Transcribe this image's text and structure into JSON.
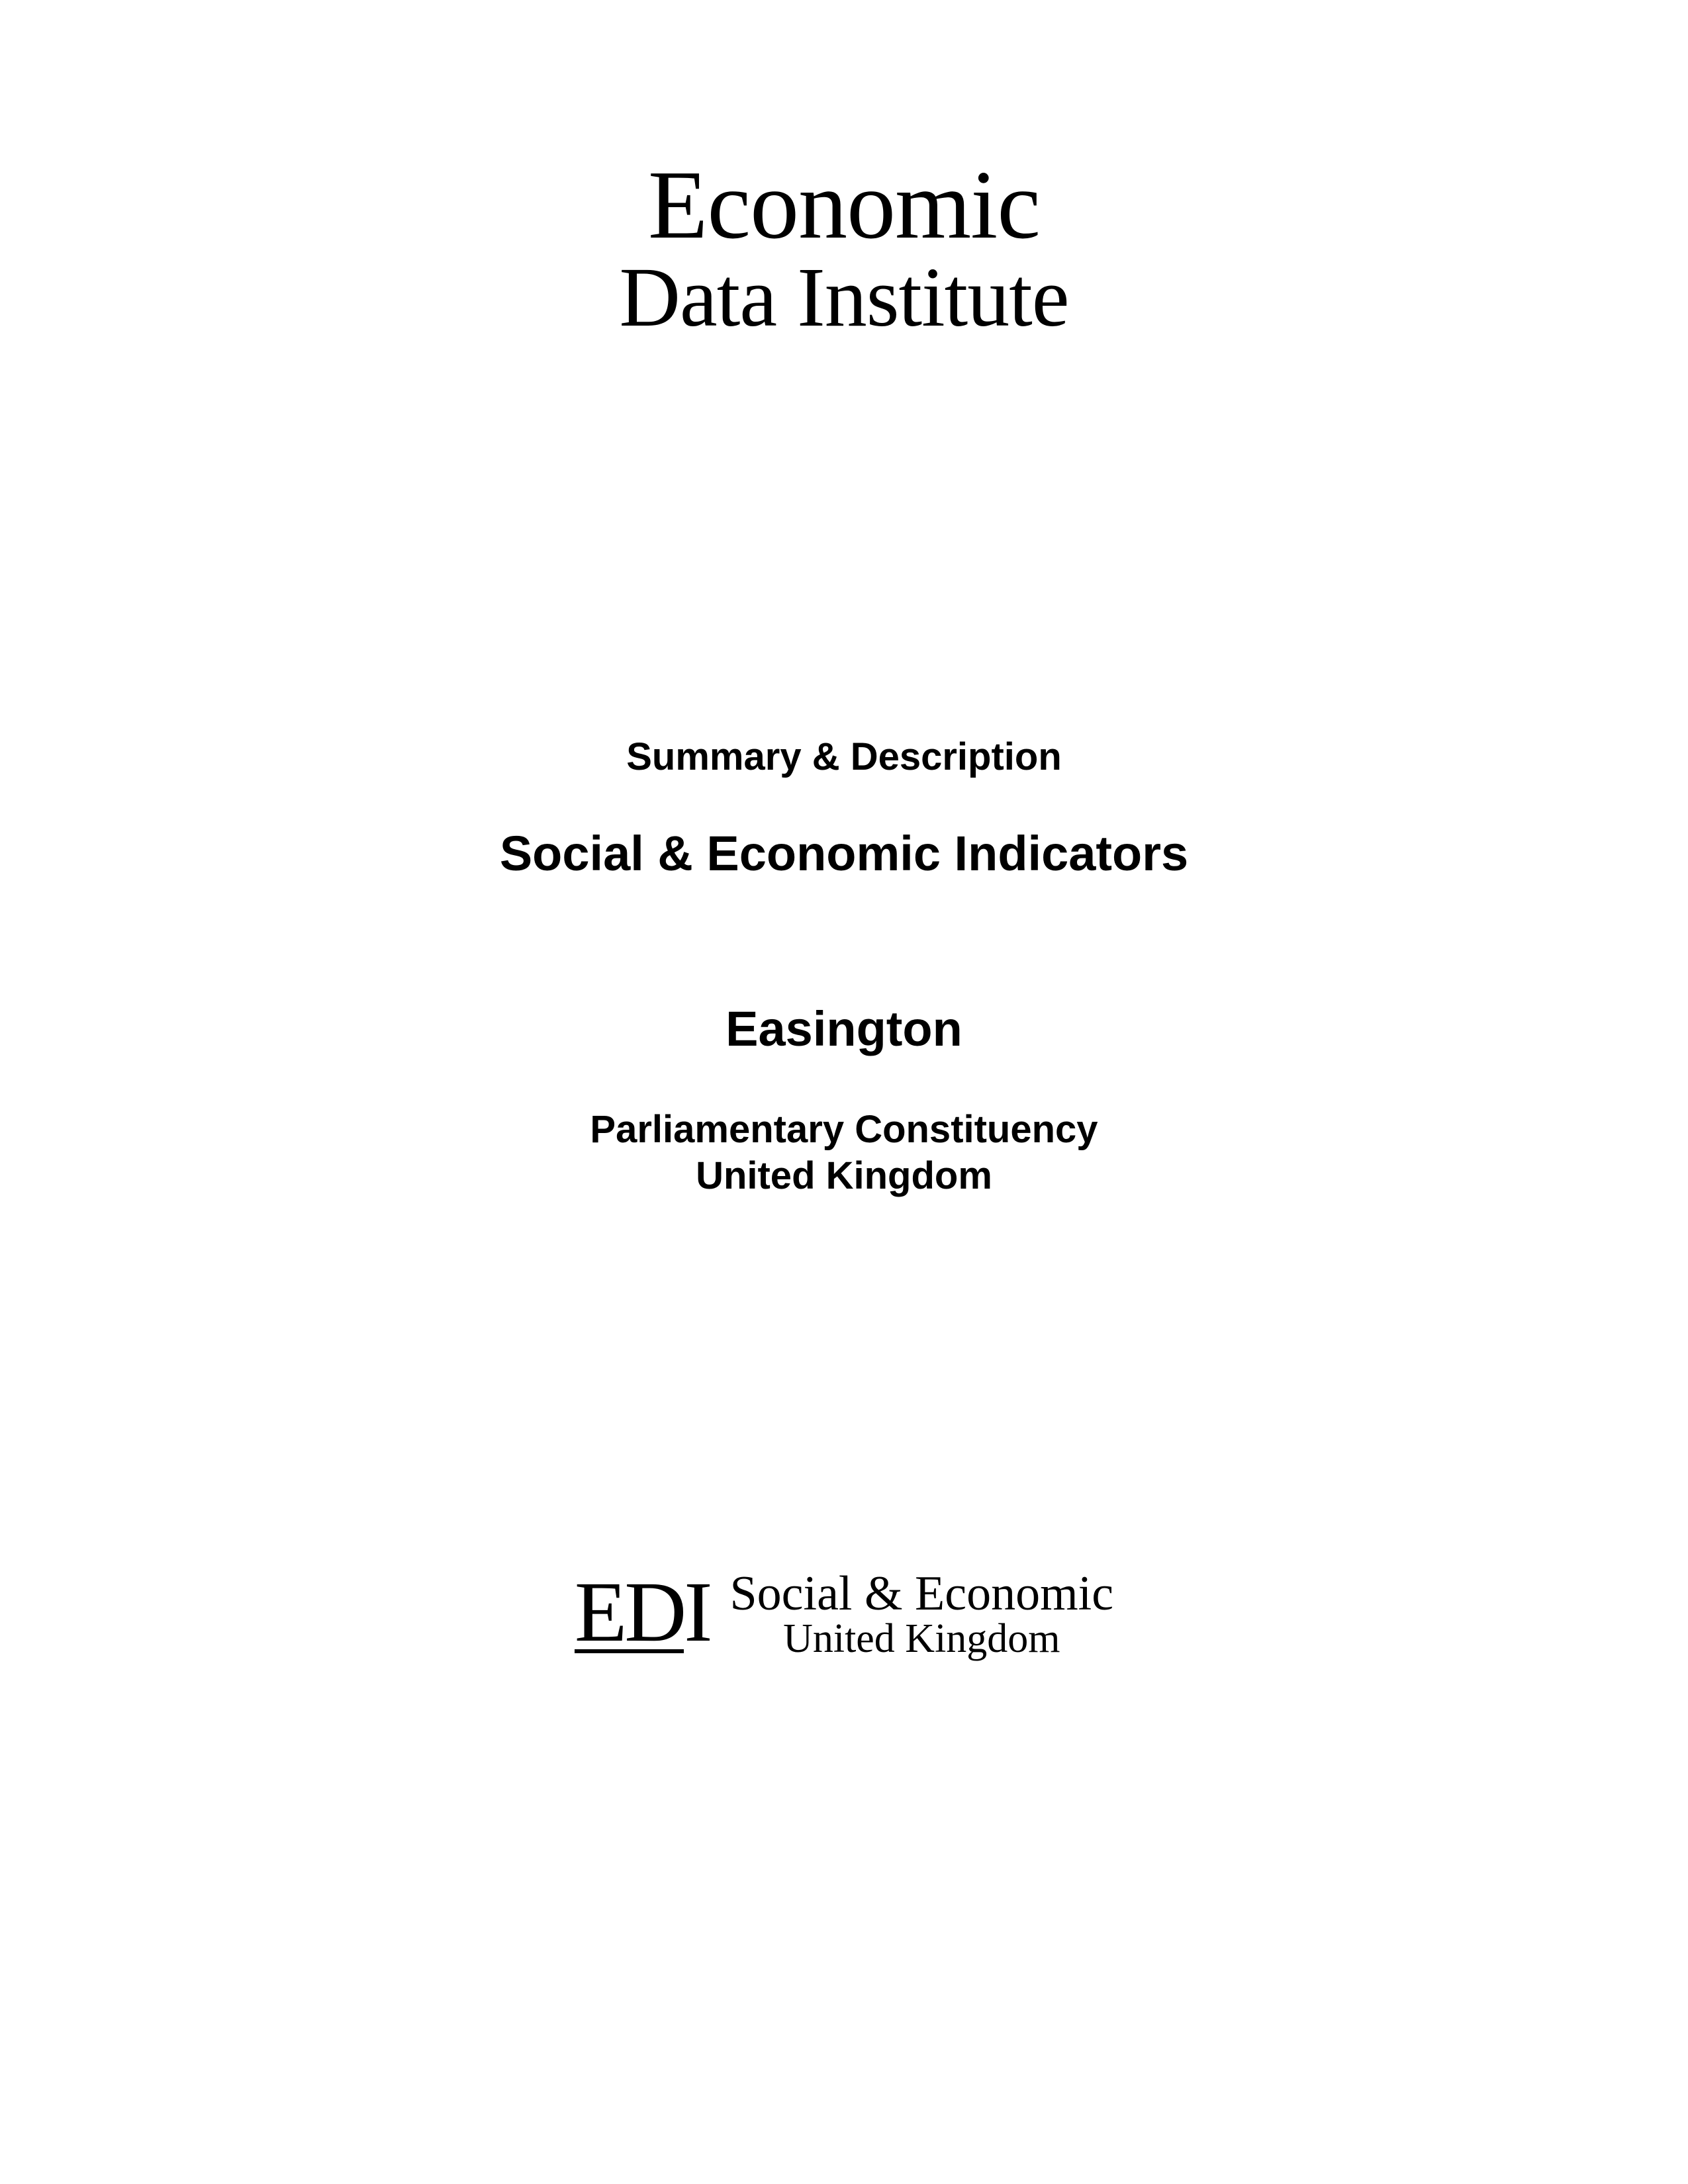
{
  "main_logo": {
    "line1": "Economic",
    "line2": "Data Institute"
  },
  "summary_description": "Summary & Description",
  "indicators_title": "Social & Economic Indicators",
  "location_name": "Easington",
  "constituency": {
    "line1": "Parliamentary Constituency",
    "line2": "United Kingdom"
  },
  "footer": {
    "mark_e": "E",
    "mark_d": "D",
    "mark_i": "I",
    "line1": "Social & Economic",
    "line2": "United Kingdom"
  },
  "colors": {
    "background": "#ffffff",
    "text": "#000000"
  },
  "typography": {
    "serif_family": "Georgia, Times New Roman, serif",
    "sans_family": "Arial, Helvetica, sans-serif",
    "main_logo_line1_size": 148,
    "main_logo_line2_size": 128,
    "summary_size": 58,
    "title_size": 74,
    "footer_mark_size": 130,
    "footer_line1_size": 74,
    "footer_line2_size": 62
  }
}
